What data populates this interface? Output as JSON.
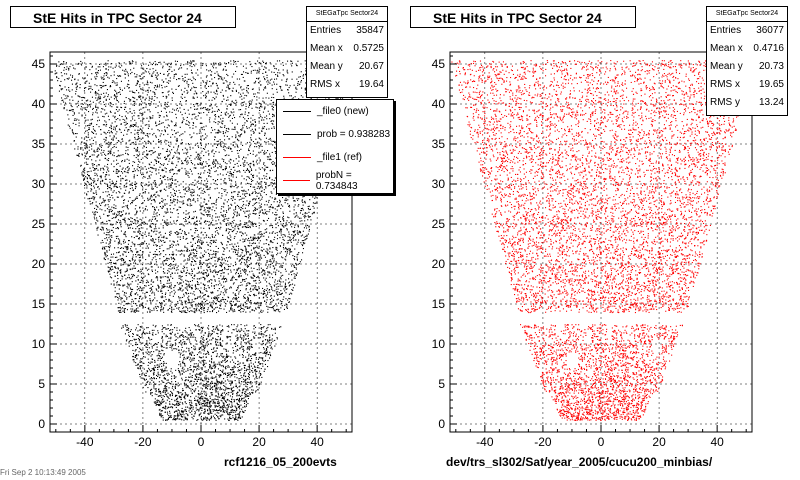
{
  "colors": {
    "ref": "#000000",
    "new": "#ff0000"
  },
  "panels": [
    {
      "title": "StE Hits in TPC Sector 24",
      "stats": {
        "header": "StEGaTpc Sector24",
        "rows": [
          {
            "label": "Entries",
            "value": "35847"
          },
          {
            "label": "Mean x",
            "value": "0.5725"
          },
          {
            "label": "Mean y",
            "value": "20.67"
          },
          {
            "label": "RMS x",
            "value": "19.64"
          }
        ]
      },
      "footer": "rcf1216_05_200evts"
    },
    {
      "title": "StE Hits in TPC Sector 24",
      "stats": {
        "header": "StEGaTpc Sector24",
        "rows": [
          {
            "label": "Entries",
            "value": "36077"
          },
          {
            "label": "Mean x",
            "value": "0.4716"
          },
          {
            "label": "Mean y",
            "value": "20.73"
          },
          {
            "label": "RMS x",
            "value": "19.65"
          },
          {
            "label": "RMS y",
            "value": "13.24"
          }
        ]
      },
      "footer": "dev/trs_sl302/Sat/year_2005/cucu200_minbias/"
    }
  ],
  "legend": {
    "items": [
      {
        "label": "_file0 (new)",
        "color": "#000000"
      },
      {
        "label": "prob = 0.938283",
        "color": "#000000"
      },
      {
        "label": "_file1 (ref)",
        "color": "#ff0000"
      },
      {
        "label": "probN = 0.734843",
        "color": "#ff0000"
      }
    ]
  },
  "date_stamp": "Fri Sep  2 10:13:49 2005",
  "chart_data": [
    {
      "type": "scatter",
      "title": "StE Hits in TPC Sector 24",
      "xlim": [
        -52,
        52
      ],
      "ylim": [
        -1,
        46.5
      ],
      "x_ticks": [
        -40,
        -20,
        0,
        20,
        40
      ],
      "y_ticks": [
        0,
        5,
        10,
        15,
        20,
        25,
        30,
        35,
        40,
        45
      ],
      "grid": true,
      "entries": 35847,
      "color": "#000000",
      "region": {
        "inner_y": [
          0.5,
          12.5
        ],
        "outer_y": [
          14,
          45.5
        ]
      }
    },
    {
      "type": "scatter",
      "title": "StE Hits in TPC Sector 24",
      "xlim": [
        -52,
        52
      ],
      "ylim": [
        -1,
        46.5
      ],
      "x_ticks": [
        -40,
        -20,
        0,
        20,
        40
      ],
      "y_ticks": [
        0,
        5,
        10,
        15,
        20,
        25,
        30,
        35,
        40,
        45
      ],
      "grid": true,
      "entries": 36077,
      "color": "#ff0000",
      "region": {
        "inner_y": [
          0.5,
          12.5
        ],
        "outer_y": [
          14,
          45.5
        ]
      }
    }
  ]
}
